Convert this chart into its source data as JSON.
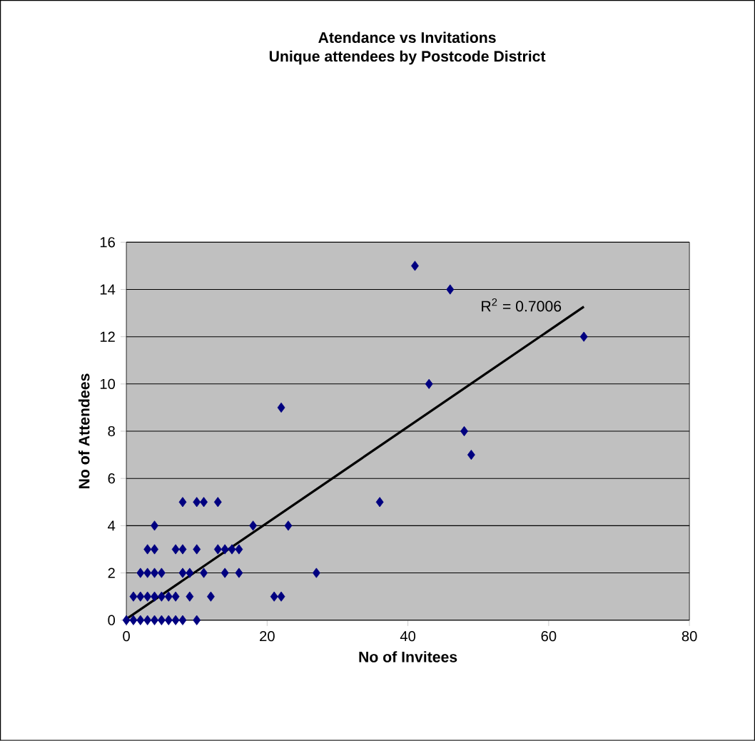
{
  "chart_data": {
    "type": "scatter",
    "title": "Atendance vs Invitations",
    "subtitle": "Unique attendees by Postcode District",
    "xlabel": "No of Invitees",
    "ylabel": "No of Attendees",
    "xlim": [
      0,
      80
    ],
    "xticks": [
      0,
      20,
      40,
      60,
      80
    ],
    "ylim": [
      0,
      16
    ],
    "yticks": [
      0,
      2,
      4,
      6,
      8,
      10,
      12,
      14,
      16
    ],
    "grid": "y",
    "marker": "diamond",
    "series": [
      {
        "color": "#000080",
        "x": [
          41,
          46,
          65,
          43,
          48,
          49,
          22,
          36,
          18,
          23,
          27,
          21,
          22,
          8,
          10,
          11,
          13,
          4,
          3,
          4,
          7,
          8,
          10,
          13,
          14,
          15,
          16,
          2,
          3,
          4,
          5,
          8,
          9,
          11,
          14,
          16,
          1,
          2,
          3,
          4,
          5,
          6,
          7,
          9,
          12,
          0,
          1,
          2,
          3,
          4,
          5,
          6,
          7,
          8,
          10
        ],
        "values": [
          15,
          14,
          12,
          10,
          8,
          7,
          9,
          5,
          4,
          4,
          2,
          1,
          1,
          5,
          5,
          5,
          5,
          4,
          3,
          3,
          3,
          3,
          3,
          3,
          3,
          3,
          3,
          2,
          2,
          2,
          2,
          2,
          2,
          2,
          2,
          2,
          1,
          1,
          1,
          1,
          1,
          1,
          1,
          1,
          1,
          0,
          0,
          0,
          0,
          0,
          0,
          0,
          0,
          0,
          0
        ]
      },
      {
        "type": "line",
        "color": "#000000",
        "marker": "none",
        "x": [
          0,
          65
        ],
        "values": [
          0.05,
          13.27
        ]
      }
    ],
    "annotations": [
      "R$^{2}$ = 0.7006"
    ]
  }
}
